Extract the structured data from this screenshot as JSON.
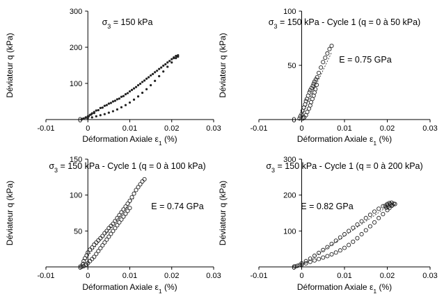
{
  "chart_data": [
    {
      "type": "scatter",
      "title": "σ3 = 150 kPa",
      "xlabel": "Déformation Axiale ε1 (%)",
      "ylabel": "Déviateur q (kPa)",
      "xlim": [
        -0.01,
        0.03
      ],
      "ylim": [
        0,
        300
      ],
      "xticks": [
        "-0.01",
        "0",
        "0.01",
        "0.02",
        "0.03"
      ],
      "yticks": [
        "0",
        "100",
        "200",
        "300"
      ],
      "annotation": "",
      "marker": "small-dot",
      "series": [
        {
          "points": [
            [
              -0.0015,
              0
            ],
            [
              -0.001,
              3
            ],
            [
              -0.0005,
              6
            ],
            [
              0,
              9
            ],
            [
              0.0005,
              13
            ],
            [
              0.001,
              17
            ],
            [
              0.0015,
              21
            ],
            [
              0.002,
              25
            ],
            [
              0.003,
              32
            ],
            [
              0.004,
              38
            ],
            [
              0.005,
              44
            ],
            [
              0.006,
              50
            ],
            [
              0.007,
              56
            ],
            [
              0.008,
              63
            ],
            [
              0.009,
              70
            ],
            [
              0.01,
              78
            ],
            [
              0.011,
              86
            ],
            [
              0.012,
              95
            ],
            [
              0.013,
              104
            ],
            [
              0.014,
              113
            ],
            [
              0.015,
              122
            ],
            [
              0.016,
              131
            ],
            [
              0.017,
              140
            ],
            [
              0.018,
              149
            ],
            [
              0.019,
              158
            ],
            [
              0.02,
              167
            ],
            [
              0.0205,
              172
            ],
            [
              0.021,
              176
            ],
            [
              0.0215,
              178
            ]
          ]
        },
        {
          "points": [
            [
              0.0215,
              174
            ],
            [
              0.021,
              170
            ],
            [
              0.02,
              158
            ],
            [
              0.019,
              146
            ],
            [
              0.018,
              133
            ],
            [
              0.017,
              120
            ],
            [
              0.016,
              107
            ],
            [
              0.015,
              95
            ],
            [
              0.014,
              84
            ],
            [
              0.013,
              74
            ],
            [
              0.012,
              64
            ],
            [
              0.011,
              55
            ],
            [
              0.01,
              47
            ],
            [
              0.009,
              40
            ],
            [
              0.008,
              34
            ],
            [
              0.007,
              28
            ],
            [
              0.006,
              23
            ],
            [
              0.005,
              19
            ],
            [
              0.004,
              15
            ],
            [
              0.003,
              12
            ],
            [
              0.002,
              9
            ],
            [
              0.001,
              6
            ],
            [
              0,
              4
            ],
            [
              -0.001,
              2
            ],
            [
              -0.0015,
              1
            ]
          ]
        },
        {
          "points": [
            [
              -0.0012,
              2
            ],
            [
              -0.0005,
              5
            ],
            [
              0.0002,
              9
            ],
            [
              0.0008,
              14
            ],
            [
              0.0015,
              18
            ],
            [
              0.0025,
              26
            ],
            [
              0.0035,
              33
            ],
            [
              0.0045,
              40
            ],
            [
              0.0055,
              46
            ],
            [
              0.0065,
              52
            ],
            [
              0.0075,
              58
            ],
            [
              0.0085,
              65
            ],
            [
              0.0095,
              73
            ],
            [
              0.0105,
              82
            ],
            [
              0.0115,
              90
            ],
            [
              0.0125,
              99
            ],
            [
              0.0135,
              108
            ],
            [
              0.0145,
              117
            ],
            [
              0.0155,
              126
            ],
            [
              0.0165,
              135
            ],
            [
              0.0175,
              144
            ],
            [
              0.0185,
              153
            ],
            [
              0.0195,
              162
            ],
            [
              0.0205,
              170
            ],
            [
              0.0212,
              175
            ]
          ]
        }
      ]
    },
    {
      "type": "scatter",
      "title": "σ3 = 150 kPa - Cycle 1 (q = 0 à 50 kPa)",
      "xlabel": "Déformation Axiale ε1 (%)",
      "ylabel": "Déviateur q (kPa)",
      "xlim": [
        -0.01,
        0.03
      ],
      "ylim": [
        0,
        100
      ],
      "xticks": [
        "-0.01",
        "0",
        "0.01",
        "0.02",
        "0.03"
      ],
      "yticks": [
        "0",
        "50",
        "100"
      ],
      "annotation": "E = 0.75 GPa",
      "marker": "open-circle",
      "fit_line": [
        [
          -0.0005,
          0
        ],
        [
          0.007,
          62
        ]
      ],
      "series": [
        {
          "points": [
            [
              -0.0005,
              1
            ],
            [
              -0.0003,
              3
            ],
            [
              0,
              5
            ],
            [
              0.0002,
              8
            ],
            [
              0.0005,
              11
            ],
            [
              0.0008,
              14
            ],
            [
              0.001,
              17
            ],
            [
              0.0012,
              19
            ],
            [
              0.0015,
              22
            ],
            [
              0.0018,
              25
            ],
            [
              0.002,
              27
            ],
            [
              0.0023,
              29
            ],
            [
              0.0026,
              31
            ],
            [
              0.0028,
              33
            ],
            [
              0.003,
              35
            ],
            [
              0.0033,
              37
            ],
            [
              0.0036,
              39
            ],
            [
              0.004,
              43
            ],
            [
              0.0045,
              48
            ],
            [
              0.005,
              53
            ],
            [
              0.0055,
              57
            ],
            [
              0.006,
              61
            ],
            [
              0.0065,
              65
            ],
            [
              0.007,
              68
            ]
          ]
        },
        {
          "points": [
            [
              0.0035,
              32
            ],
            [
              0.0032,
              28
            ],
            [
              0.003,
              25
            ],
            [
              0.0028,
              22
            ],
            [
              0.0025,
              19
            ],
            [
              0.0022,
              16
            ],
            [
              0.002,
              13
            ],
            [
              0.0017,
              10
            ],
            [
              0.0013,
              7
            ],
            [
              0.001,
              4
            ],
            [
              0.0006,
              2
            ],
            [
              0.0003,
              1
            ]
          ]
        }
      ]
    },
    {
      "type": "scatter",
      "title": "σ3 = 150 kPa - Cycle 1 (q = 0 à 100 kPa)",
      "xlabel": "Déformation Axiale ε1 (%)",
      "ylabel": "Déviateur q (kPa)",
      "xlim": [
        -0.01,
        0.03
      ],
      "ylim": [
        0,
        150
      ],
      "xticks": [
        "-0.01",
        "0",
        "0.01",
        "0.02",
        "0.03"
      ],
      "yticks": [
        "0",
        "50",
        "100",
        "150"
      ],
      "annotation": "E = 0.74 GPa",
      "marker": "open-circle",
      "fit_line": [
        [
          -0.002,
          0
        ],
        [
          0.011,
          96
        ]
      ],
      "series": [
        {
          "points": [
            [
              -0.0015,
              0
            ],
            [
              -0.0012,
              4
            ],
            [
              -0.001,
              8
            ],
            [
              -0.0007,
              12
            ],
            [
              -0.0003,
              16
            ],
            [
              0,
              20
            ],
            [
              0.0005,
              24
            ],
            [
              0.001,
              27
            ],
            [
              0.0015,
              31
            ],
            [
              0.002,
              34
            ],
            [
              0.0025,
              37
            ],
            [
              0.003,
              40
            ],
            [
              0.0035,
              43
            ],
            [
              0.004,
              47
            ],
            [
              0.0045,
              50
            ],
            [
              0.005,
              54
            ],
            [
              0.0055,
              57
            ],
            [
              0.006,
              60
            ],
            [
              0.0065,
              64
            ],
            [
              0.007,
              68
            ],
            [
              0.0075,
              72
            ],
            [
              0.008,
              76
            ],
            [
              0.0085,
              80
            ],
            [
              0.009,
              84
            ],
            [
              0.0095,
              88
            ],
            [
              0.01,
              92
            ],
            [
              0.0105,
              97
            ],
            [
              0.011,
              102
            ],
            [
              0.0115,
              107
            ],
            [
              0.012,
              111
            ],
            [
              0.0125,
              115
            ],
            [
              0.013,
              119
            ],
            [
              0.0135,
              122
            ]
          ]
        },
        {
          "points": [
            [
              0.01,
              82
            ],
            [
              0.0095,
              78
            ],
            [
              0.009,
              74
            ],
            [
              0.0085,
              70
            ],
            [
              0.008,
              66
            ],
            [
              0.0075,
              62
            ],
            [
              0.007,
              58
            ],
            [
              0.0065,
              54
            ],
            [
              0.006,
              50
            ],
            [
              0.0055,
              46
            ],
            [
              0.005,
              42
            ],
            [
              0.0045,
              38
            ],
            [
              0.004,
              34
            ],
            [
              0.0035,
              30
            ],
            [
              0.003,
              26
            ],
            [
              0.0025,
              22
            ],
            [
              0.002,
              18
            ],
            [
              0.0015,
              14
            ],
            [
              0.001,
              11
            ],
            [
              0.0005,
              8
            ],
            [
              0,
              5
            ],
            [
              -0.0005,
              3
            ],
            [
              -0.001,
              1
            ]
          ]
        }
      ]
    },
    {
      "type": "scatter",
      "title": "σ3 = 150 kPa - Cycle 1 (q = 0 à 200 kPa)",
      "xlabel": "Déformation Axiale ε1 (%)",
      "ylabel": "Déviateur q (kPa)",
      "xlim": [
        -0.01,
        0.03
      ],
      "ylim": [
        0,
        300
      ],
      "xticks": [
        "-0.01",
        "0",
        "0.01",
        "0.02",
        "0.03"
      ],
      "yticks": [
        "0",
        "100",
        "200",
        "300"
      ],
      "annotation": "E = 0.82 GPa",
      "marker": "open-circle",
      "fit_line": [
        [
          -0.0005,
          0
        ],
        [
          0.021,
          176
        ]
      ],
      "series": [
        {
          "points": [
            [
              -0.0005,
              5
            ],
            [
              0,
              10
            ],
            [
              0.001,
              16
            ],
            [
              0.002,
              23
            ],
            [
              0.003,
              31
            ],
            [
              0.004,
              39
            ],
            [
              0.005,
              47
            ],
            [
              0.006,
              55
            ],
            [
              0.007,
              64
            ],
            [
              0.008,
              73
            ],
            [
              0.009,
              82
            ],
            [
              0.01,
              91
            ],
            [
              0.011,
              100
            ],
            [
              0.012,
              109
            ],
            [
              0.013,
              118
            ],
            [
              0.014,
              127
            ],
            [
              0.015,
              136
            ],
            [
              0.016,
              145
            ],
            [
              0.017,
              154
            ],
            [
              0.018,
              162
            ],
            [
              0.019,
              169
            ],
            [
              0.02,
              175
            ],
            [
              0.0205,
              178
            ],
            [
              0.021,
              179
            ]
          ]
        },
        {
          "points": [
            [
              0.0215,
              176
            ],
            [
              0.021,
              170
            ],
            [
              0.0205,
              164
            ],
            [
              0.02,
              158
            ],
            [
              0.019,
              147
            ],
            [
              0.018,
              136
            ],
            [
              0.017,
              124
            ],
            [
              0.016,
              113
            ],
            [
              0.015,
              102
            ],
            [
              0.014,
              91
            ],
            [
              0.013,
              80
            ],
            [
              0.012,
              70
            ],
            [
              0.011,
              61
            ],
            [
              0.01,
              53
            ],
            [
              0.009,
              46
            ],
            [
              0.008,
              40
            ],
            [
              0.007,
              35
            ],
            [
              0.006,
              30
            ],
            [
              0.005,
              26
            ],
            [
              0.004,
              22
            ],
            [
              0.003,
              18
            ],
            [
              0.002,
              14
            ],
            [
              0.001,
              10
            ],
            [
              0,
              6
            ],
            [
              -0.001,
              3
            ],
            [
              -0.0015,
              1
            ]
          ]
        },
        {
          "points": [
            [
              0.0195,
              170
            ],
            [
              0.0198,
              165
            ],
            [
              0.02,
              172
            ],
            [
              0.0202,
              168
            ],
            [
              0.0207,
              174
            ],
            [
              0.0212,
              172
            ],
            [
              0.0218,
              175
            ]
          ]
        }
      ]
    }
  ]
}
